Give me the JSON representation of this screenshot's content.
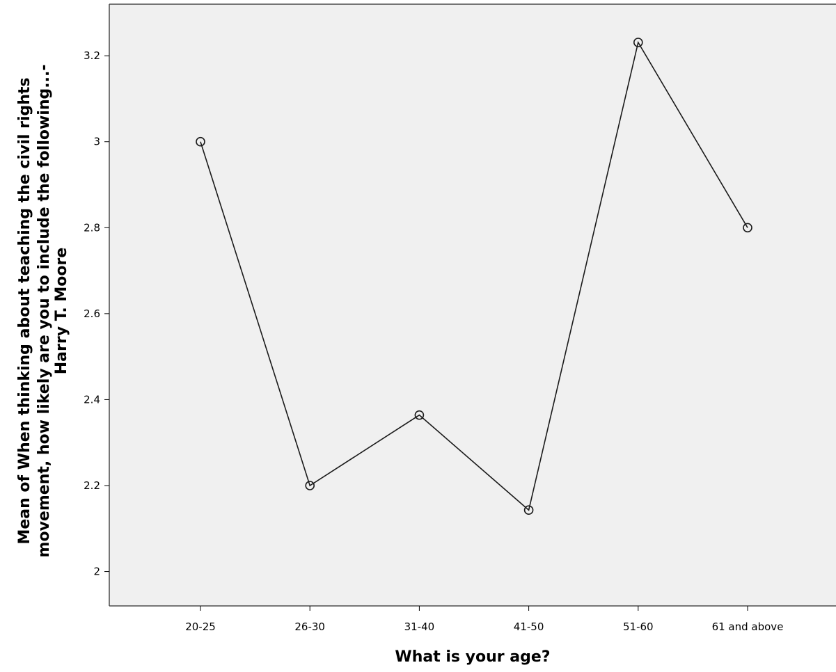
{
  "chart_data": {
    "type": "line",
    "categories": [
      "20-25",
      "26-30",
      "31-40",
      "41-50",
      "51-60",
      "61 and above"
    ],
    "values": [
      3.0,
      2.2,
      2.364,
      2.143,
      3.231,
      2.8
    ],
    "xlabel": "What is your age?",
    "ylabel_lines": [
      "Mean of When thinking about teaching the civil rights",
      "movement, how likely are you to include the following...-",
      "Harry T. Moore"
    ],
    "ylim": [
      1.92,
      3.32
    ],
    "yticks": [
      2,
      2.2,
      2.4,
      2.6,
      2.8,
      3,
      3.2
    ],
    "ytick_labels": [
      "2",
      "2.2",
      "2.4",
      "2.6",
      "2.8",
      "3",
      "3.2"
    ],
    "grid": false,
    "colors": {
      "plot_background": "#f0f0f0",
      "line": "#1a1a1a",
      "frame": "#4a4a4a"
    }
  }
}
